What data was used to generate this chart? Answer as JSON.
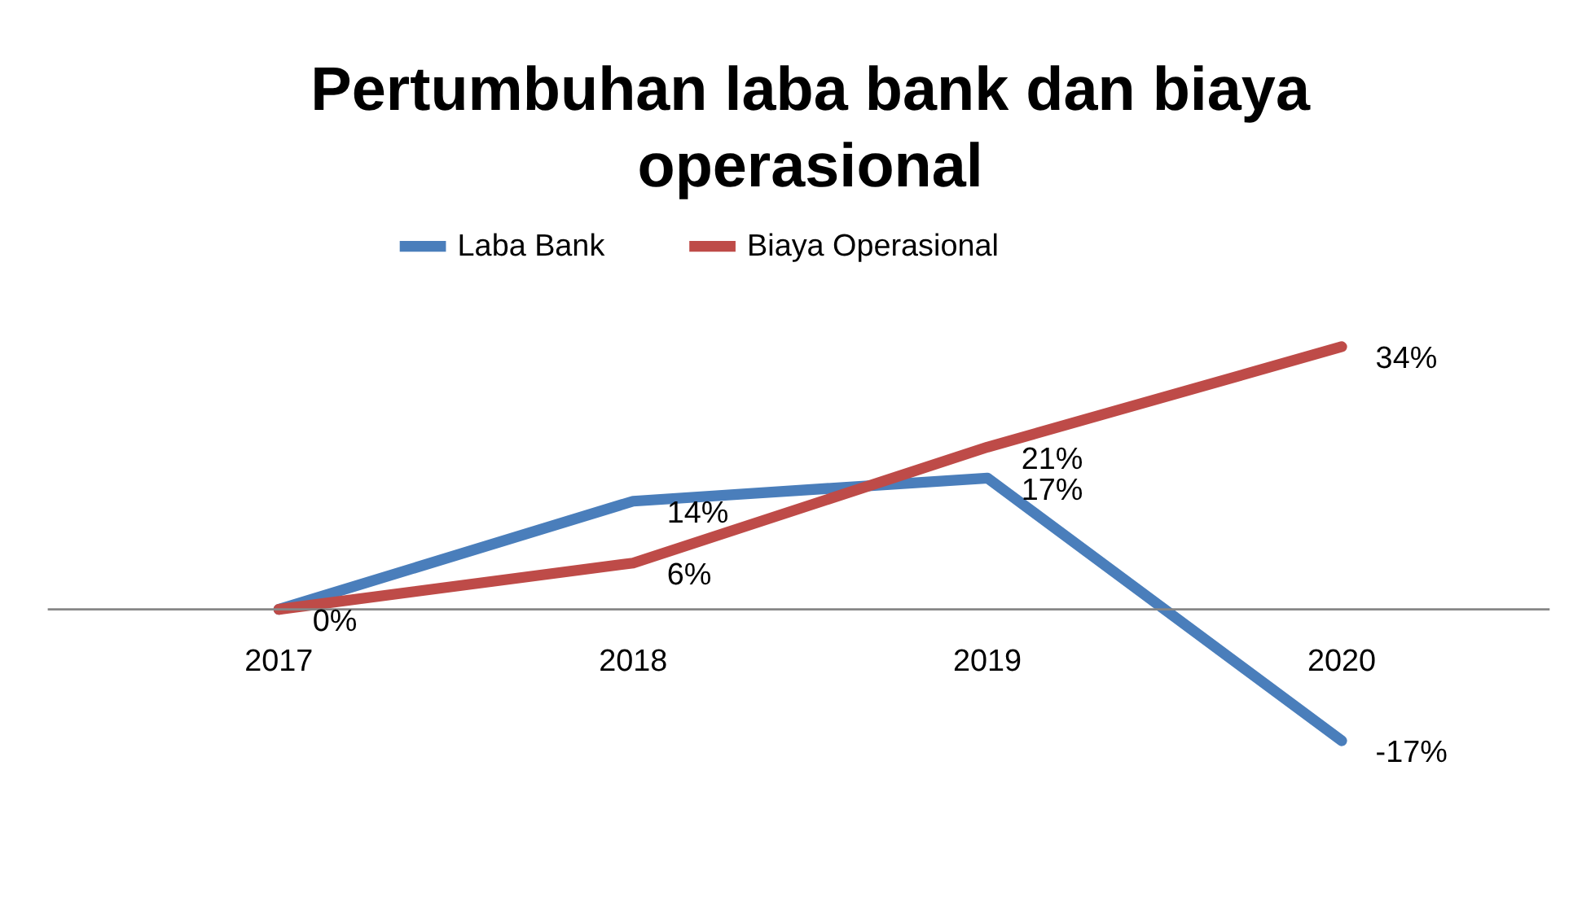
{
  "chart_data": {
    "type": "line",
    "title": "Pertumbuhan laba bank dan biaya operasional",
    "categories": [
      "2017",
      "2018",
      "2019",
      "2020"
    ],
    "series": [
      {
        "name": "Laba Bank",
        "color": "#4a7ebb",
        "values": [
          0,
          14,
          17,
          -17
        ],
        "value_labels": [
          "0%",
          "14%",
          "17%",
          "-17%"
        ]
      },
      {
        "name": "Biaya Operasional",
        "color": "#be4b48",
        "values": [
          0,
          6,
          21,
          34
        ],
        "value_labels": [
          null,
          "6%",
          "21%",
          "34%"
        ]
      }
    ],
    "legend": "top",
    "grid": false,
    "marker": "none",
    "line_style": "solid"
  }
}
